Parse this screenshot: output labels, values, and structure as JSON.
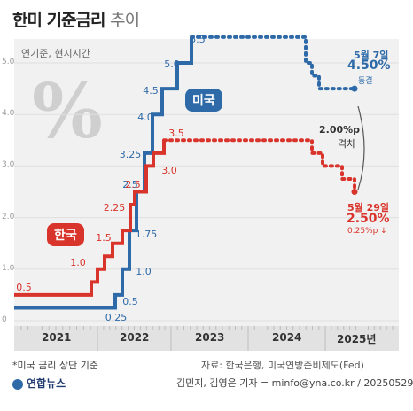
{
  "header": {
    "title": "한미 기준금리",
    "subtitle": "추이"
  },
  "note": "연기준, 현지시간",
  "decoration": {
    "percent_glyph": "%"
  },
  "chart_data": {
    "type": "line",
    "ylim": [
      0,
      5.5
    ],
    "y_ticks": [
      "0",
      "1.0",
      "2.0",
      "3.0",
      "4.0",
      "5.0"
    ],
    "x_ticks": [
      "2021",
      "2022",
      "2023",
      "2024",
      "2025년"
    ],
    "series": [
      {
        "name": "미국",
        "color": "#2e6aa8",
        "values": [
          0.25,
          0.25,
          0.5,
          1.0,
          1.75,
          2.5,
          3.25,
          4.0,
          4.5,
          5.0,
          5.5,
          5.5,
          5.0,
          4.75,
          4.5,
          4.5
        ],
        "step_labels": [
          "0.25",
          "0.5",
          "1.0",
          "1.75",
          "2.5",
          "3.25",
          "4.0",
          "4.5",
          "5.0",
          "5.5"
        ]
      },
      {
        "name": "한국",
        "color": "#d9342b",
        "values": [
          0.5,
          0.5,
          0.75,
          1.0,
          1.25,
          1.5,
          1.75,
          2.25,
          2.5,
          3.0,
          3.25,
          3.5,
          3.5,
          3.25,
          3.0,
          2.75,
          2.5
        ],
        "step_labels": [
          "0.5",
          "1.0",
          "1.5",
          "2.25",
          "2.5",
          "3.0",
          "3.5"
        ]
      }
    ],
    "annotations": {
      "us_date": "5월 7일",
      "us_rate": "4.50%",
      "us_status": "동결",
      "gap_value": "2.00%p",
      "gap_label": "격차",
      "kr_date": "5월 29일",
      "kr_rate": "2.50%",
      "kr_change": "0.25%p ↓"
    }
  },
  "footer": {
    "footnote": "*미국 금리 상단 기준",
    "source": "자료: 한국은행, 미국연방준비제도(Fed)",
    "logo": "연합뉴스",
    "credit": "김민지, 김영은 기자 = minfo@yna.co.kr / 20250529"
  }
}
